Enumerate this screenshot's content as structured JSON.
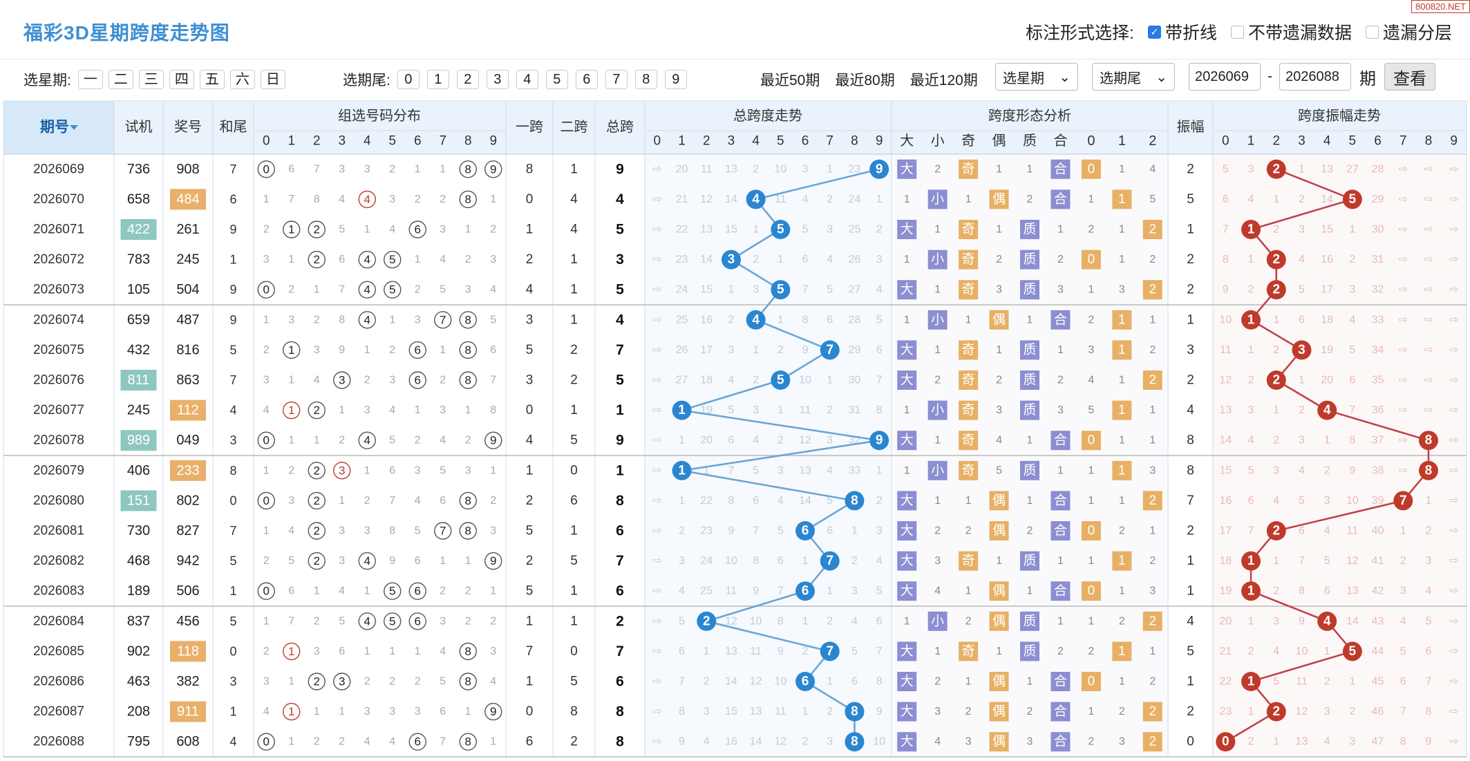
{
  "title": "福彩3D星期跨度走势图",
  "watermark": "800820.NET",
  "marks": {
    "label": "标注形式选择:",
    "options": [
      {
        "label": "带折线",
        "checked": true
      },
      {
        "label": "不带遗漏数据",
        "checked": false
      },
      {
        "label": "遗漏分层",
        "checked": false
      }
    ]
  },
  "filter": {
    "weekday_label": "选星期:",
    "weekdays": [
      "一",
      "二",
      "三",
      "四",
      "五",
      "六",
      "日"
    ],
    "tail_label": "选期尾:",
    "tails": [
      "0",
      "1",
      "2",
      "3",
      "4",
      "5",
      "6",
      "7",
      "8",
      "9"
    ],
    "recent": [
      "最近50期",
      "最近80期",
      "最近120期"
    ],
    "weekday_select": "选星期",
    "tail_select": "选期尾",
    "from": "2026069",
    "dash": "-",
    "to": "2026088",
    "unit": "期",
    "query": "查看"
  },
  "headers": {
    "period": "期号",
    "trial": "试机",
    "prize": "奖号",
    "sumtail": "和尾",
    "dist": "组选号码分布",
    "span1": "一跨",
    "span2": "二跨",
    "span": "总跨",
    "trend": "总跨度走势",
    "shape": "跨度形态分析",
    "shape_cols": [
      "大",
      "小",
      "奇",
      "偶",
      "质",
      "合",
      "0",
      "1",
      "2"
    ],
    "amp": "振幅",
    "amptrend": "跨度振幅走势",
    "digits": [
      "0",
      "1",
      "2",
      "3",
      "4",
      "5",
      "6",
      "7",
      "8",
      "9"
    ]
  },
  "colors": {
    "blue": "#2a86d0",
    "red": "#bf3a2b",
    "orange_tag": "#e8b06a",
    "teal_tag": "#8ec6c0",
    "purple_tag": "#8b8ed1",
    "tan_tag": "#e7b065",
    "line_blue": "#6aa6d6",
    "line_red": "#c0424c"
  },
  "rows": [
    {
      "p": "2026069",
      "t": "736",
      "n": "908",
      "tt": "",
      "nt": "",
      "st": "7",
      "s1": "8",
      "s2": "1",
      "s": "9",
      "dist": [
        "0",
        "6",
        "7",
        "3",
        "3",
        "2",
        "1",
        "1",
        "8",
        "9"
      ],
      "tr": [
        "⇨",
        "20",
        "11",
        "13",
        "2",
        "10",
        "3",
        "1",
        "23",
        "9"
      ],
      "sh": [
        "大",
        "2",
        "奇",
        "1",
        "1",
        "合",
        "0",
        "1",
        "4"
      ],
      "a": "2",
      "at": [
        "5",
        "3",
        "2",
        "1",
        "13",
        "27",
        "28",
        "⇨",
        "⇨",
        "⇨"
      ]
    },
    {
      "p": "2026070",
      "t": "658",
      "n": "484",
      "tt": "",
      "nt": "o",
      "st": "6",
      "s1": "0",
      "s2": "4",
      "s": "4",
      "dist": [
        "1",
        "7",
        "8",
        "4",
        "4",
        "3",
        "2",
        "2",
        "8",
        "1"
      ],
      "tr": [
        "⇨",
        "21",
        "12",
        "14",
        "4",
        "11",
        "4",
        "2",
        "24",
        "1"
      ],
      "sh": [
        "1",
        "小",
        "1",
        "偶",
        "2",
        "合",
        "1",
        "1",
        "5"
      ],
      "a": "5",
      "at": [
        "6",
        "4",
        "1",
        "2",
        "14",
        "5",
        "29",
        "⇨",
        "⇨",
        "⇨"
      ]
    },
    {
      "p": "2026071",
      "t": "422",
      "n": "261",
      "tt": "t",
      "nt": "",
      "st": "9",
      "s1": "1",
      "s2": "4",
      "s": "5",
      "dist": [
        "2",
        "1",
        "2",
        "5",
        "1",
        "4",
        "6",
        "3",
        "1",
        "2"
      ],
      "tr": [
        "⇨",
        "22",
        "13",
        "15",
        "1",
        "5",
        "5",
        "3",
        "25",
        "2"
      ],
      "sh": [
        "大",
        "1",
        "奇",
        "1",
        "质",
        "1",
        "2",
        "1",
        "2"
      ],
      "a": "1",
      "at": [
        "7",
        "1",
        "2",
        "3",
        "15",
        "1",
        "30",
        "⇨",
        "⇨",
        "⇨"
      ]
    },
    {
      "p": "2026072",
      "t": "783",
      "n": "245",
      "tt": "",
      "nt": "",
      "st": "1",
      "s1": "2",
      "s2": "1",
      "s": "3",
      "dist": [
        "3",
        "1",
        "2",
        "6",
        "4",
        "5",
        "1",
        "4",
        "2",
        "3"
      ],
      "tr": [
        "⇨",
        "23",
        "14",
        "3",
        "2",
        "1",
        "6",
        "4",
        "26",
        "3"
      ],
      "sh": [
        "1",
        "小",
        "奇",
        "2",
        "质",
        "2",
        "0",
        "1",
        "2"
      ],
      "a": "2",
      "at": [
        "8",
        "1",
        "2",
        "4",
        "16",
        "2",
        "31",
        "⇨",
        "⇨",
        "⇨"
      ]
    },
    {
      "p": "2026073",
      "t": "105",
      "n": "504",
      "tt": "",
      "nt": "",
      "st": "9",
      "s1": "4",
      "s2": "1",
      "s": "5",
      "dist": [
        "0",
        "2",
        "1",
        "7",
        "4",
        "5",
        "2",
        "5",
        "3",
        "4"
      ],
      "tr": [
        "⇨",
        "24",
        "15",
        "1",
        "3",
        "5",
        "7",
        "5",
        "27",
        "4"
      ],
      "sh": [
        "大",
        "1",
        "奇",
        "3",
        "质",
        "3",
        "1",
        "3",
        "2"
      ],
      "a": "2",
      "at": [
        "9",
        "2",
        "2",
        "5",
        "17",
        "3",
        "32",
        "⇨",
        "⇨",
        "⇨"
      ]
    },
    {
      "p": "2026074",
      "t": "659",
      "n": "487",
      "tt": "",
      "nt": "",
      "st": "9",
      "s1": "3",
      "s2": "1",
      "s": "4",
      "dist": [
        "1",
        "3",
        "2",
        "8",
        "4",
        "1",
        "3",
        "7",
        "8",
        "5"
      ],
      "tr": [
        "⇨",
        "25",
        "16",
        "2",
        "4",
        "1",
        "8",
        "6",
        "28",
        "5"
      ],
      "sh": [
        "1",
        "小",
        "1",
        "偶",
        "1",
        "合",
        "2",
        "1",
        "1"
      ],
      "a": "1",
      "at": [
        "10",
        "1",
        "1",
        "6",
        "18",
        "4",
        "33",
        "⇨",
        "⇨",
        "⇨"
      ]
    },
    {
      "p": "2026075",
      "t": "432",
      "n": "816",
      "tt": "",
      "nt": "",
      "st": "5",
      "s1": "5",
      "s2": "2",
      "s": "7",
      "dist": [
        "2",
        "1",
        "3",
        "9",
        "1",
        "2",
        "6",
        "1",
        "8",
        "6"
      ],
      "tr": [
        "⇨",
        "26",
        "17",
        "3",
        "1",
        "2",
        "9",
        "7",
        "29",
        "6"
      ],
      "sh": [
        "大",
        "1",
        "奇",
        "1",
        "质",
        "1",
        "3",
        "1",
        "2"
      ],
      "a": "3",
      "at": [
        "11",
        "1",
        "2",
        "3",
        "19",
        "5",
        "34",
        "⇨",
        "⇨",
        "⇨"
      ]
    },
    {
      "p": "2026076",
      "t": "811",
      "n": "863",
      "tt": "t",
      "nt": "",
      "st": "7",
      "s1": "3",
      "s2": "2",
      "s": "5",
      "dist": [
        "3",
        "1",
        "4",
        "3",
        "2",
        "3",
        "6",
        "2",
        "8",
        "7"
      ],
      "tr": [
        "⇨",
        "27",
        "18",
        "4",
        "2",
        "5",
        "10",
        "1",
        "30",
        "7"
      ],
      "sh": [
        "大",
        "2",
        "奇",
        "2",
        "质",
        "2",
        "4",
        "1",
        "2"
      ],
      "a": "2",
      "at": [
        "12",
        "2",
        "2",
        "1",
        "20",
        "6",
        "35",
        "⇨",
        "⇨",
        "⇨"
      ]
    },
    {
      "p": "2026077",
      "t": "245",
      "n": "112",
      "tt": "",
      "nt": "o",
      "st": "4",
      "s1": "0",
      "s2": "1",
      "s": "1",
      "dist": [
        "4",
        "1",
        "2",
        "1",
        "3",
        "4",
        "1",
        "3",
        "1",
        "8"
      ],
      "tr": [
        "⇨",
        "1",
        "19",
        "5",
        "3",
        "1",
        "11",
        "2",
        "31",
        "8"
      ],
      "sh": [
        "1",
        "小",
        "奇",
        "3",
        "质",
        "3",
        "5",
        "1",
        "1"
      ],
      "a": "4",
      "at": [
        "13",
        "3",
        "1",
        "2",
        "4",
        "7",
        "36",
        "⇨",
        "⇨",
        "⇨"
      ]
    },
    {
      "p": "2026078",
      "t": "989",
      "n": "049",
      "tt": "t",
      "nt": "",
      "st": "3",
      "s1": "4",
      "s2": "5",
      "s": "9",
      "dist": [
        "0",
        "1",
        "1",
        "2",
        "4",
        "5",
        "2",
        "4",
        "2",
        "9"
      ],
      "tr": [
        "⇨",
        "1",
        "20",
        "6",
        "4",
        "2",
        "12",
        "3",
        "32",
        "9"
      ],
      "sh": [
        "大",
        "1",
        "奇",
        "4",
        "1",
        "合",
        "0",
        "1",
        "1"
      ],
      "a": "8",
      "at": [
        "14",
        "4",
        "2",
        "3",
        "1",
        "8",
        "37",
        "⇨",
        "8",
        "⇨"
      ]
    },
    {
      "p": "2026079",
      "t": "406",
      "n": "233",
      "tt": "",
      "nt": "o",
      "st": "8",
      "s1": "1",
      "s2": "0",
      "s": "1",
      "dist": [
        "1",
        "2",
        "2",
        "3",
        "1",
        "6",
        "3",
        "5",
        "3",
        "1"
      ],
      "tr": [
        "⇨",
        "1",
        "1",
        "7",
        "5",
        "3",
        "13",
        "4",
        "33",
        "1"
      ],
      "sh": [
        "1",
        "小",
        "奇",
        "5",
        "质",
        "1",
        "1",
        "1",
        "3"
      ],
      "a": "8",
      "at": [
        "15",
        "5",
        "3",
        "4",
        "2",
        "9",
        "38",
        "⇨",
        "8",
        "⇨"
      ]
    },
    {
      "p": "2026080",
      "t": "151",
      "n": "802",
      "tt": "t",
      "nt": "",
      "st": "0",
      "s1": "2",
      "s2": "6",
      "s": "8",
      "dist": [
        "0",
        "3",
        "2",
        "1",
        "2",
        "7",
        "4",
        "6",
        "8",
        "2"
      ],
      "tr": [
        "⇨",
        "1",
        "22",
        "8",
        "6",
        "4",
        "14",
        "5",
        "8",
        "2"
      ],
      "sh": [
        "大",
        "1",
        "1",
        "偶",
        "1",
        "合",
        "1",
        "1",
        "2"
      ],
      "a": "7",
      "at": [
        "16",
        "6",
        "4",
        "5",
        "3",
        "10",
        "39",
        "7",
        "1",
        "⇨"
      ]
    },
    {
      "p": "2026081",
      "t": "730",
      "n": "827",
      "tt": "",
      "nt": "",
      "st": "7",
      "s1": "5",
      "s2": "1",
      "s": "6",
      "dist": [
        "1",
        "4",
        "2",
        "3",
        "3",
        "8",
        "5",
        "7",
        "8",
        "3"
      ],
      "tr": [
        "⇨",
        "2",
        "23",
        "9",
        "7",
        "5",
        "6",
        "6",
        "1",
        "3"
      ],
      "sh": [
        "大",
        "2",
        "2",
        "偶",
        "2",
        "合",
        "0",
        "2",
        "1"
      ],
      "a": "2",
      "at": [
        "17",
        "7",
        "2",
        "6",
        "4",
        "11",
        "40",
        "1",
        "2",
        "⇨"
      ]
    },
    {
      "p": "2026082",
      "t": "468",
      "n": "942",
      "tt": "",
      "nt": "",
      "st": "5",
      "s1": "2",
      "s2": "5",
      "s": "7",
      "dist": [
        "2",
        "5",
        "2",
        "3",
        "4",
        "9",
        "6",
        "1",
        "1",
        "9"
      ],
      "tr": [
        "⇨",
        "3",
        "24",
        "10",
        "8",
        "6",
        "1",
        "7",
        "2",
        "4"
      ],
      "sh": [
        "大",
        "3",
        "奇",
        "1",
        "质",
        "1",
        "1",
        "1",
        "2"
      ],
      "a": "1",
      "at": [
        "18",
        "1",
        "1",
        "7",
        "5",
        "12",
        "41",
        "2",
        "3",
        "⇨"
      ]
    },
    {
      "p": "2026083",
      "t": "189",
      "n": "506",
      "tt": "",
      "nt": "",
      "st": "1",
      "s1": "5",
      "s2": "1",
      "s": "6",
      "dist": [
        "0",
        "6",
        "1",
        "4",
        "1",
        "5",
        "6",
        "2",
        "2",
        "1"
      ],
      "tr": [
        "⇨",
        "4",
        "25",
        "11",
        "9",
        "7",
        "6",
        "1",
        "3",
        "5"
      ],
      "sh": [
        "大",
        "4",
        "1",
        "偶",
        "1",
        "合",
        "0",
        "1",
        "3"
      ],
      "a": "1",
      "at": [
        "19",
        "1",
        "2",
        "8",
        "6",
        "13",
        "42",
        "3",
        "4",
        "⇨"
      ]
    },
    {
      "p": "2026084",
      "t": "837",
      "n": "456",
      "tt": "",
      "nt": "",
      "st": "5",
      "s1": "1",
      "s2": "1",
      "s": "2",
      "dist": [
        "1",
        "7",
        "2",
        "5",
        "4",
        "5",
        "6",
        "3",
        "2",
        "2"
      ],
      "tr": [
        "⇨",
        "5",
        "2",
        "12",
        "10",
        "8",
        "1",
        "2",
        "4",
        "6"
      ],
      "sh": [
        "1",
        "小",
        "2",
        "偶",
        "质",
        "1",
        "1",
        "2",
        "2"
      ],
      "a": "4",
      "at": [
        "20",
        "1",
        "3",
        "9",
        "4",
        "14",
        "43",
        "4",
        "5",
        "⇨"
      ]
    },
    {
      "p": "2026085",
      "t": "902",
      "n": "118",
      "tt": "",
      "nt": "o",
      "st": "0",
      "s1": "7",
      "s2": "0",
      "s": "7",
      "dist": [
        "2",
        "1",
        "3",
        "6",
        "1",
        "1",
        "1",
        "4",
        "8",
        "3"
      ],
      "tr": [
        "⇨",
        "6",
        "1",
        "13",
        "11",
        "9",
        "2",
        "7",
        "5",
        "7"
      ],
      "sh": [
        "大",
        "1",
        "奇",
        "1",
        "质",
        "2",
        "2",
        "1",
        "1"
      ],
      "a": "5",
      "at": [
        "21",
        "2",
        "4",
        "10",
        "1",
        "5",
        "44",
        "5",
        "6",
        "⇨"
      ]
    },
    {
      "p": "2026086",
      "t": "463",
      "n": "382",
      "tt": "",
      "nt": "",
      "st": "3",
      "s1": "1",
      "s2": "5",
      "s": "6",
      "dist": [
        "3",
        "1",
        "2",
        "3",
        "2",
        "2",
        "2",
        "5",
        "8",
        "4"
      ],
      "tr": [
        "⇨",
        "7",
        "2",
        "14",
        "12",
        "10",
        "6",
        "1",
        "6",
        "8"
      ],
      "sh": [
        "大",
        "2",
        "1",
        "偶",
        "1",
        "合",
        "0",
        "1",
        "2"
      ],
      "a": "1",
      "at": [
        "22",
        "1",
        "5",
        "11",
        "2",
        "1",
        "45",
        "6",
        "7",
        "⇨"
      ]
    },
    {
      "p": "2026087",
      "t": "208",
      "n": "911",
      "tt": "",
      "nt": "o",
      "st": "1",
      "s1": "0",
      "s2": "8",
      "s": "8",
      "dist": [
        "4",
        "1",
        "1",
        "1",
        "3",
        "3",
        "3",
        "6",
        "1",
        "9"
      ],
      "tr": [
        "⇨",
        "8",
        "3",
        "15",
        "13",
        "11",
        "1",
        "2",
        "8",
        "9"
      ],
      "sh": [
        "大",
        "3",
        "2",
        "偶",
        "2",
        "合",
        "1",
        "2",
        "2"
      ],
      "a": "2",
      "at": [
        "23",
        "1",
        "2",
        "12",
        "3",
        "2",
        "46",
        "7",
        "8",
        "⇨"
      ]
    },
    {
      "p": "2026088",
      "t": "795",
      "n": "608",
      "tt": "",
      "nt": "",
      "st": "4",
      "s1": "6",
      "s2": "2",
      "s": "8",
      "dist": [
        "0",
        "1",
        "2",
        "2",
        "4",
        "4",
        "6",
        "7",
        "8",
        "1"
      ],
      "tr": [
        "⇨",
        "9",
        "4",
        "16",
        "14",
        "12",
        "2",
        "3",
        "8",
        "10"
      ],
      "sh": [
        "大",
        "4",
        "3",
        "偶",
        "3",
        "合",
        "2",
        "3",
        "2"
      ],
      "a": "0",
      "at": [
        "0",
        "2",
        "1",
        "13",
        "4",
        "3",
        "47",
        "8",
        "9",
        "⇨"
      ]
    }
  ]
}
